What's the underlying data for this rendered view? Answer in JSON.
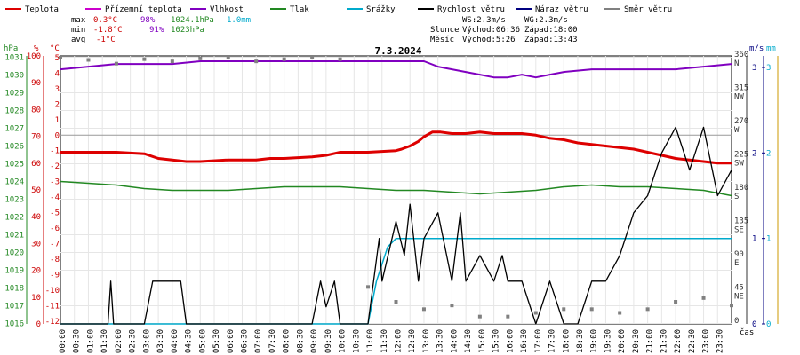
{
  "chart_data": {
    "type": "line",
    "title": "7.3.2024",
    "time_label": "čas",
    "x_ticks": [
      "00:00",
      "00:30",
      "01:00",
      "01:30",
      "02:00",
      "02:30",
      "03:00",
      "03:30",
      "04:00",
      "04:30",
      "05:00",
      "05:30",
      "06:00",
      "06:30",
      "07:00",
      "07:30",
      "08:00",
      "08:30",
      "09:00",
      "09:30",
      "10:00",
      "10:30",
      "11:00",
      "11:30",
      "12:00",
      "12:30",
      "13:00",
      "13:30",
      "14:00",
      "14:30",
      "15:00",
      "15:30",
      "16:00",
      "16:30",
      "17:00",
      "17:30",
      "18:00",
      "18:30",
      "19:00",
      "19:30",
      "20:00",
      "20:30",
      "21:00",
      "21:30",
      "22:00",
      "22:30",
      "23:00",
      "23:30"
    ],
    "legend": [
      {
        "name": "Teplota",
        "color": "#dd0000"
      },
      {
        "name": "Přízemní teplota",
        "color": "#cc00cc"
      },
      {
        "name": "Vlhkost",
        "color": "#8000c0"
      },
      {
        "name": "Tlak",
        "color": "#228822"
      },
      {
        "name": "Srážky",
        "color": "#00aacc"
      },
      {
        "name": "Rychlost větru",
        "color": "#000000"
      },
      {
        "name": "Náraz větru",
        "color": "#000080"
      },
      {
        "name": "Směr větru",
        "color": "#808080"
      }
    ],
    "stats": {
      "max_label": "max",
      "min_label": "min",
      "avg_label": "avg",
      "max_temp": "0.3°C",
      "max_hum": "98%",
      "max_press": "1024.1hPa",
      "max_rain": "1.0mm",
      "min_temp": "-1.8°C",
      "min_hum": "91%",
      "min_press": "1023hPa",
      "avg_temp": "-1°C",
      "ws": "WS:2.3m/s",
      "wg": "WG:2.3m/s",
      "sun_label": "Slunce",
      "sun_rise": "Východ:06:36",
      "sun_set": "Západ:18:00",
      "moon_label": "Měsíc",
      "moon_rise": "Východ:5:26",
      "moon_set": "Západ:13:43"
    },
    "axes": {
      "pressure": {
        "unit": "hPa",
        "ticks": [
          "1031",
          "1030",
          "1029",
          "1028",
          "1027",
          "1026",
          "1025",
          "1024",
          "1023",
          "1022",
          "1021",
          "1020",
          "1019",
          "1018",
          "1017",
          "1016"
        ],
        "color": "#228822"
      },
      "humidity": {
        "unit": "%",
        "ticks": [
          "100",
          "90",
          "80",
          "70",
          "60",
          "50",
          "40",
          "30",
          "20",
          "10",
          "0"
        ],
        "color": "#cc0000"
      },
      "temperature": {
        "unit": "°C",
        "ticks": [
          "5",
          "4",
          "3",
          "2",
          "1",
          "0",
          "-1",
          "-2",
          "-3",
          "-4",
          "-5",
          "-6",
          "-7",
          "-8",
          "-9",
          "-10",
          "-11",
          "-12"
        ],
        "color": "#cc0000"
      },
      "direction": {
        "ticks": [
          "360",
          "315",
          "270",
          "225",
          "180",
          "135",
          "90",
          "45",
          "0"
        ],
        "labels": [
          "N",
          "NW",
          "W",
          "SW",
          "S",
          "SE",
          "E",
          "NE",
          ""
        ],
        "color": "#333333"
      },
      "wind": {
        "unit": "m/s",
        "ticks": [
          "3",
          "2",
          "1",
          "0"
        ],
        "color": "#000080"
      },
      "rain": {
        "unit": "mm",
        "ticks": [
          "3",
          "2",
          "1",
          "0"
        ],
        "color": "#00aacc"
      }
    },
    "series": [
      {
        "name": "Teplota",
        "color": "#dd0000",
        "x": [
          0,
          1,
          2,
          3,
          3.5,
          4,
          4.5,
          5,
          6,
          7,
          7.5,
          8,
          9,
          9.5,
          10,
          11,
          12,
          12.2,
          12.5,
          12.8,
          13,
          13.3,
          13.6,
          14,
          14.5,
          15,
          15.5,
          16,
          16.5,
          17,
          17.5,
          18,
          18.5,
          19,
          19.5,
          20,
          20.5,
          21,
          21.5,
          22,
          22.5,
          23,
          23.5,
          24
        ],
        "values": [
          -1.1,
          -1.1,
          -1.1,
          -1.2,
          -1.5,
          -1.6,
          -1.7,
          -1.7,
          -1.6,
          -1.6,
          -1.5,
          -1.5,
          -1.4,
          -1.3,
          -1.1,
          -1.1,
          -1.0,
          -0.9,
          -0.7,
          -0.4,
          -0.1,
          0.2,
          0.2,
          0.1,
          0.1,
          0.2,
          0.1,
          0.1,
          0.1,
          0.0,
          -0.2,
          -0.3,
          -0.5,
          -0.6,
          -0.7,
          -0.8,
          -0.9,
          -1.1,
          -1.3,
          -1.5,
          -1.6,
          -1.7,
          -1.8,
          -1.8
        ]
      },
      {
        "name": "Vlhkost",
        "color": "#8000c0",
        "x": [
          0,
          1,
          2,
          3,
          4,
          5,
          6,
          7,
          8,
          9,
          10,
          11,
          12,
          13,
          13.5,
          14,
          14.5,
          15,
          15.5,
          16,
          16.5,
          17,
          17.5,
          18,
          19,
          20,
          21,
          22,
          23,
          24
        ],
        "values": [
          95,
          96,
          97,
          97,
          97,
          98,
          98,
          98,
          98,
          98,
          98,
          98,
          98,
          98,
          96,
          95,
          94,
          93,
          92,
          92,
          93,
          92,
          93,
          94,
          95,
          95,
          95,
          95,
          96,
          97
        ]
      },
      {
        "name": "Tlak",
        "color": "#228822",
        "x": [
          0,
          1,
          2,
          3,
          4,
          5,
          6,
          7,
          8,
          9,
          10,
          11,
          12,
          13,
          14,
          15,
          16,
          17,
          18,
          19,
          20,
          21,
          22,
          23,
          24
        ],
        "values": [
          1024.0,
          1023.9,
          1023.8,
          1023.6,
          1023.5,
          1023.5,
          1023.5,
          1023.6,
          1023.7,
          1023.7,
          1023.7,
          1023.6,
          1023.5,
          1023.5,
          1023.4,
          1023.3,
          1023.4,
          1023.5,
          1023.7,
          1023.8,
          1023.7,
          1023.7,
          1023.6,
          1023.5,
          1023.2
        ]
      },
      {
        "name": "Srážky",
        "color": "#00aacc",
        "x": [
          0,
          11,
          11.3,
          11.7,
          12,
          24
        ],
        "values": [
          0,
          0,
          0.5,
          0.9,
          1.0,
          1.0
        ]
      },
      {
        "name": "Rychlost větru",
        "color": "#000000",
        "x": [
          0,
          1.7,
          1.8,
          1.9,
          2,
          3,
          3.3,
          3.5,
          4,
          4.3,
          4.5,
          5,
          6,
          9,
          9.3,
          9.5,
          9.8,
          10,
          11,
          11.2,
          11.4,
          11.5,
          12,
          12.3,
          12.5,
          12.8,
          13,
          13.5,
          14,
          14.3,
          14.5,
          15,
          15.5,
          15.8,
          16,
          16.5,
          17,
          17.5,
          18,
          18.5,
          19,
          19.5,
          20,
          20.5,
          21,
          21.5,
          22,
          22.5,
          23,
          23.5,
          24
        ],
        "values": [
          0,
          0,
          0.5,
          0,
          0,
          0,
          0.5,
          0.5,
          0.5,
          0.5,
          0,
          0,
          0,
          0,
          0.5,
          0.2,
          0.5,
          0,
          0,
          0.5,
          1.0,
          0.5,
          1.2,
          0.8,
          1.4,
          0.5,
          1.0,
          1.3,
          0.5,
          1.3,
          0.5,
          0.8,
          0.5,
          0.8,
          0.5,
          0.5,
          0,
          0.5,
          0,
          0,
          0.5,
          0.5,
          0.8,
          1.3,
          1.5,
          2.0,
          2.3,
          1.8,
          2.3,
          1.5,
          1.8
        ]
      },
      {
        "name": "Směr větru",
        "color": "#808080",
        "x": [
          0,
          1,
          2,
          3,
          4,
          5,
          6,
          7,
          8,
          9,
          10,
          11,
          12,
          13,
          14,
          15,
          16,
          17,
          18,
          19,
          20,
          21,
          22,
          23,
          24
        ],
        "values": [
          360,
          357,
          352,
          358,
          355,
          359,
          360,
          355,
          358,
          360,
          358,
          50,
          30,
          20,
          25,
          10,
          10,
          15,
          20,
          20,
          15,
          20,
          30,
          35,
          25
        ]
      }
    ]
  }
}
